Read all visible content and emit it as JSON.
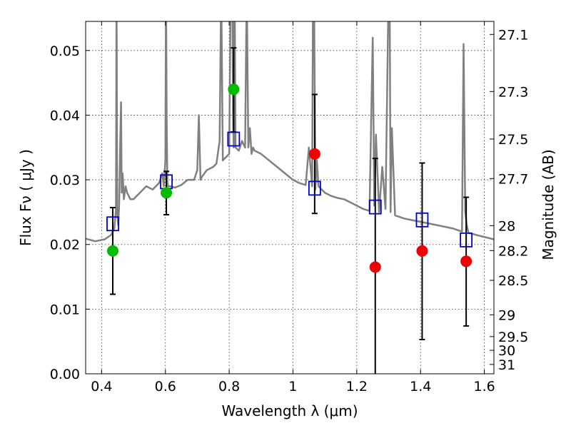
{
  "chart_data": {
    "type": "scatter",
    "title": "",
    "xlabel": "Wavelength  λ (μm)",
    "ylabel": "Flux  Fν  ( μJy )",
    "ylabel_right": "Magnitude (AB)",
    "xlim": [
      0.35,
      1.63
    ],
    "ylim": [
      0.0,
      0.0545
    ],
    "grid": true,
    "legend": "none",
    "x_ticks": [
      {
        "value": 0.4,
        "label": "0.4"
      },
      {
        "value": 0.6,
        "label": "0.6"
      },
      {
        "value": 0.8,
        "label": "0.8"
      },
      {
        "value": 1.0,
        "label": "1"
      },
      {
        "value": 1.2,
        "label": "1.2"
      },
      {
        "value": 1.4,
        "label": "1.4"
      },
      {
        "value": 1.6,
        "label": "1.6"
      }
    ],
    "y_ticks": [
      {
        "value": 0.0,
        "label": "0.00"
      },
      {
        "value": 0.01,
        "label": "0.01"
      },
      {
        "value": 0.02,
        "label": "0.02"
      },
      {
        "value": 0.03,
        "label": "0.03"
      },
      {
        "value": 0.04,
        "label": "0.04"
      },
      {
        "value": 0.05,
        "label": "0.05"
      }
    ],
    "right_ticks": [
      {
        "mag": 27.1,
        "label": "27.1"
      },
      {
        "mag": 27.3,
        "label": "27.3"
      },
      {
        "mag": 27.5,
        "label": "27.5"
      },
      {
        "mag": 27.7,
        "label": "27.7"
      },
      {
        "mag": 28.0,
        "label": "28"
      },
      {
        "mag": 28.2,
        "label": "28.2"
      },
      {
        "mag": 28.5,
        "label": "28.5"
      },
      {
        "mag": 29.0,
        "label": "29"
      },
      {
        "mag": 29.5,
        "label": "29.5"
      },
      {
        "mag": 30.0,
        "label": "30"
      },
      {
        "mag": 31.0,
        "label": "31"
      }
    ],
    "colors": {
      "model": "#808080",
      "observed_green": "#00bb00",
      "observed_red": "#ee0000",
      "synthetic": "#0000cc",
      "errorbar": "#000000"
    },
    "series": [
      {
        "kind": "model-spectrum",
        "x": [
          0.35,
          0.38,
          0.41,
          0.43,
          0.44,
          0.445,
          0.447,
          0.449,
          0.452,
          0.455,
          0.458,
          0.461,
          0.463,
          0.466,
          0.47,
          0.475,
          0.48,
          0.49,
          0.5,
          0.52,
          0.54,
          0.56,
          0.58,
          0.59,
          0.595,
          0.6,
          0.602,
          0.604,
          0.606,
          0.608,
          0.615,
          0.63,
          0.65,
          0.67,
          0.69,
          0.7,
          0.705,
          0.71,
          0.715,
          0.73,
          0.75,
          0.76,
          0.77,
          0.775,
          0.78,
          0.79,
          0.8,
          0.805,
          0.81,
          0.812,
          0.814,
          0.817,
          0.82,
          0.83,
          0.84,
          0.85,
          0.855,
          0.86,
          0.865,
          0.87,
          0.875,
          0.88,
          0.9,
          0.95,
          1.0,
          1.02,
          1.04,
          1.05,
          1.06,
          1.063,
          1.066,
          1.07,
          1.075,
          1.08,
          1.1,
          1.12,
          1.14,
          1.16,
          1.18,
          1.2,
          1.22,
          1.24,
          1.25,
          1.255,
          1.26,
          1.27,
          1.28,
          1.29,
          1.3,
          1.303,
          1.306,
          1.31,
          1.32,
          1.35,
          1.4,
          1.45,
          1.5,
          1.53,
          1.535,
          1.54,
          1.545,
          1.55,
          1.58,
          1.63
        ],
        "y": [
          0.0209,
          0.0205,
          0.0208,
          0.0215,
          0.0225,
          0.0255,
          0.06,
          0.025,
          0.023,
          0.026,
          0.035,
          0.042,
          0.028,
          0.031,
          0.027,
          0.029,
          0.028,
          0.027,
          0.027,
          0.028,
          0.029,
          0.0285,
          0.0295,
          0.031,
          0.029,
          0.033,
          0.06,
          0.04,
          0.03,
          0.029,
          0.029,
          0.0288,
          0.0292,
          0.03,
          0.03,
          0.0315,
          0.04,
          0.03,
          0.0305,
          0.0315,
          0.032,
          0.0325,
          0.036,
          0.06,
          0.033,
          0.0335,
          0.034,
          0.06,
          0.06,
          0.04,
          0.035,
          0.06,
          0.035,
          0.0345,
          0.036,
          0.035,
          0.06,
          0.035,
          0.038,
          0.034,
          0.035,
          0.0345,
          0.034,
          0.032,
          0.03,
          0.0295,
          0.0292,
          0.035,
          0.029,
          0.06,
          0.06,
          0.0285,
          0.033,
          0.029,
          0.028,
          0.0275,
          0.0272,
          0.027,
          0.0265,
          0.026,
          0.0255,
          0.0252,
          0.052,
          0.026,
          0.037,
          0.025,
          0.032,
          0.0255,
          0.06,
          0.06,
          0.025,
          0.038,
          0.0245,
          0.024,
          0.0235,
          0.023,
          0.0225,
          0.022,
          0.051,
          0.025,
          0.023,
          0.0218,
          0.0214,
          0.0208
        ]
      },
      {
        "kind": "synthetic-photometry",
        "marker": "open-square",
        "x": [
          0.435,
          0.603,
          0.814,
          1.068,
          1.258,
          1.405,
          1.543
        ],
        "y": [
          0.0232,
          0.0297,
          0.0363,
          0.0287,
          0.0258,
          0.0238,
          0.0207
        ]
      },
      {
        "kind": "observed",
        "marker": "filled-circle",
        "x": [
          0.435,
          0.603,
          0.814,
          1.068,
          1.258,
          1.405,
          1.543
        ],
        "y": [
          0.019,
          0.028,
          0.044,
          0.034,
          0.0165,
          0.019,
          0.0174
        ],
        "err_low": [
          0.0123,
          0.0246,
          0.0374,
          0.0248,
          0.0,
          0.0053,
          0.0074
        ],
        "err_high": [
          0.0257,
          0.0313,
          0.0504,
          0.0432,
          0.0333,
          0.0326,
          0.0273
        ],
        "colors": [
          "green",
          "green",
          "green",
          "red",
          "red",
          "red",
          "red"
        ]
      }
    ]
  }
}
